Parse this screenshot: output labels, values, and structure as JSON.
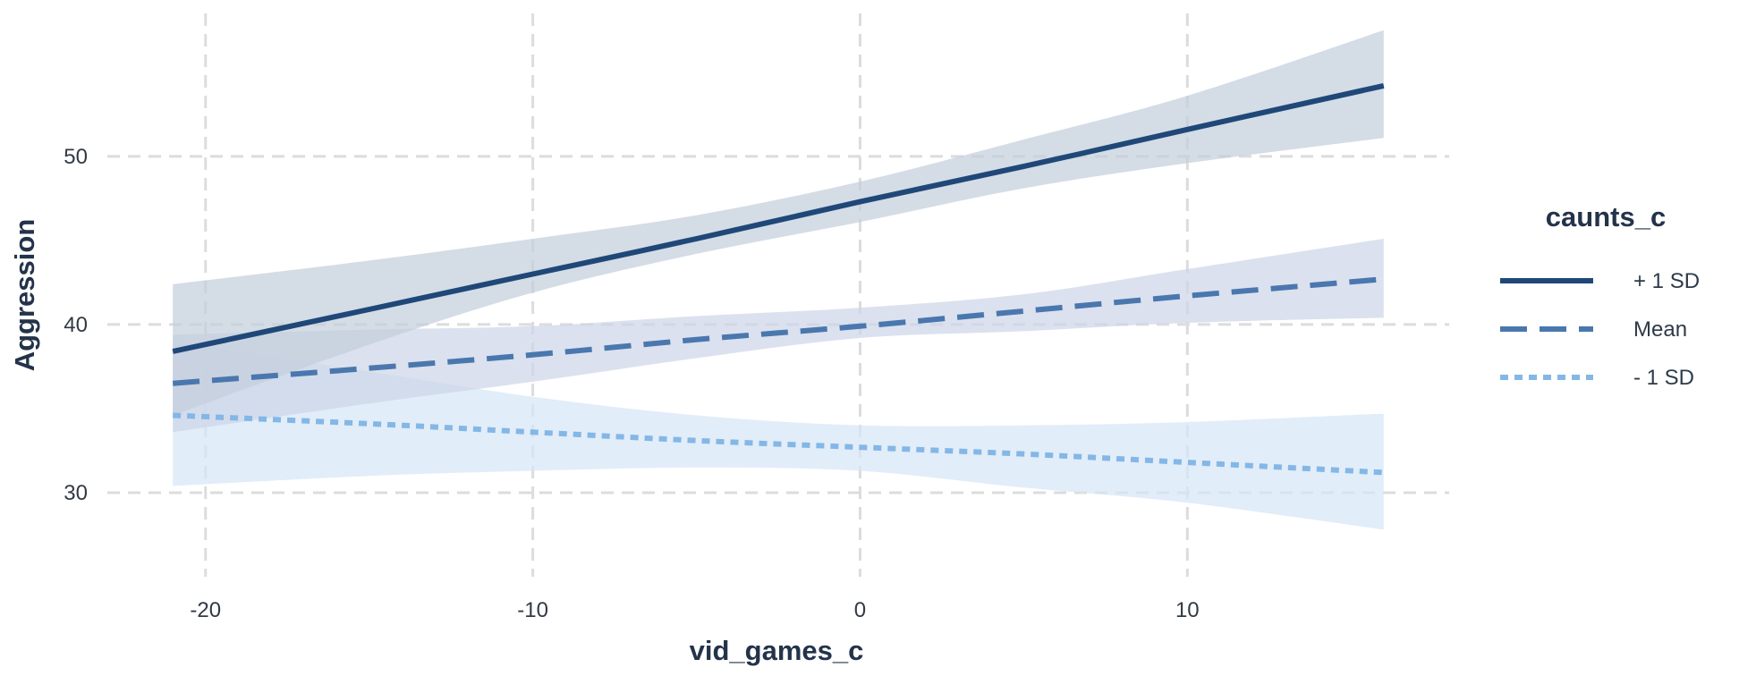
{
  "chart_data": {
    "type": "line",
    "xlabel": "vid_games_c",
    "ylabel": "Aggression",
    "xlim": [
      -23,
      18
    ],
    "ylim": [
      25,
      58.5
    ],
    "x_ticks": [
      -20,
      -10,
      0,
      10
    ],
    "x_tick_labels": [
      "-20",
      "-10",
      "0",
      "10"
    ],
    "y_ticks": [
      30,
      40,
      50
    ],
    "y_tick_labels": [
      "30",
      "40",
      "50"
    ],
    "grid": true,
    "legend": {
      "title": "caunts_c",
      "position": "right"
    },
    "x": [
      -21,
      -15,
      -10,
      -5,
      0,
      5,
      10,
      16
    ],
    "series": [
      {
        "name": "+ 1 SD",
        "color": "#1f4878",
        "dash": "solid",
        "values": [
          38.4,
          40.9,
          43.0,
          45.1,
          47.3,
          49.4,
          51.6,
          54.2
        ],
        "ci_lower": [
          34.6,
          38.8,
          41.9,
          44.2,
          46.1,
          48.1,
          49.6,
          51.1
        ],
        "ci_upper": [
          42.4,
          43.8,
          45.1,
          46.5,
          48.5,
          51.0,
          53.6,
          57.5
        ],
        "band_color": "#c3cedc"
      },
      {
        "name": "Mean",
        "color": "#4a77ae",
        "dash": "long",
        "values": [
          36.5,
          37.4,
          38.2,
          39.1,
          39.9,
          40.8,
          41.7,
          42.7
        ],
        "ci_lower": [
          33.6,
          35.3,
          36.6,
          38.0,
          39.2,
          39.6,
          40.1,
          40.4
        ],
        "ci_upper": [
          39.4,
          39.7,
          39.9,
          40.5,
          41.0,
          41.8,
          43.3,
          45.1
        ],
        "band_color": "#cdd6e7"
      },
      {
        "name": "- 1 SD",
        "color": "#84b7e6",
        "dash": "dotted",
        "values": [
          34.6,
          34.1,
          33.6,
          33.1,
          32.7,
          32.3,
          31.8,
          31.2
        ],
        "ci_lower": [
          30.4,
          31.0,
          31.3,
          31.5,
          31.3,
          30.3,
          29.4,
          27.8
        ],
        "ci_upper": [
          39.0,
          37.2,
          35.7,
          34.6,
          34.0,
          34.0,
          34.2,
          34.7
        ],
        "band_color": "#d5e6f6"
      }
    ]
  }
}
